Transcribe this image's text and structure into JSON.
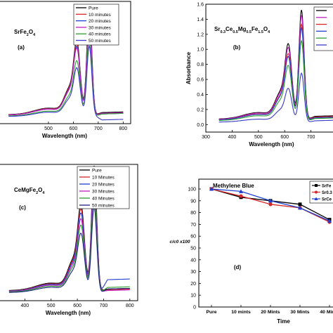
{
  "chart_data": [
    {
      "type": "line",
      "panel_label": "(a)",
      "compound": "SrFe2O4",
      "xlabel": "Wavelength (nm)",
      "ylabel": "",
      "xlim": [
        300,
        830
      ],
      "ylim": [
        -0.05,
        1.6
      ],
      "xticks": [
        "500",
        "600",
        "700",
        "800"
      ],
      "yticks": [],
      "legend_position": "top-right",
      "legend_entries": [
        "Pure",
        "10 minutes",
        "20 minutes",
        "30 minutes",
        "40 minutes",
        "50 minutes"
      ],
      "series": [
        {
          "name": "Pure",
          "color": "#000000",
          "peak": 1.45,
          "tail": 0.1
        },
        {
          "name": "10 minutes",
          "color": "#d62728",
          "peak": 1.4,
          "tail": 0.09
        },
        {
          "name": "20 minutes",
          "color": "#1f3fd1",
          "peak": 1.34,
          "tail": 0.08
        },
        {
          "name": "30 minutes",
          "color": "#c020c0",
          "peak": 1.31,
          "tail": 0.09
        },
        {
          "name": "40 minutes",
          "color": "#2e9e2e",
          "peak": 1.08,
          "tail": 0.08
        },
        {
          "name": "50 minutes",
          "color": "#3a3ac8",
          "peak": 0.95,
          "tail": 0.0
        }
      ]
    },
    {
      "type": "line",
      "panel_label": "(b)",
      "compound": "Sr0.3Ce0.5Mg0.5Fe1.5O4",
      "xlabel": "Wavelength (nm)",
      "ylabel": "Absorbance",
      "xlim": [
        300,
        800
      ],
      "ylim": [
        -0.1,
        1.6
      ],
      "xticks": [
        "300",
        "400",
        "500",
        "600",
        "700",
        "800"
      ],
      "yticks": [
        "0.0",
        "0.2",
        "0.4",
        "0.6",
        "0.8",
        "1.0",
        "1.2",
        "1.4",
        "1.6"
      ],
      "legend_position": "top-right",
      "series": [
        {
          "name": "",
          "color": "#000000",
          "peak": 1.45,
          "tail": 0.11
        },
        {
          "name": "",
          "color": "#c020c0",
          "peak": 1.38,
          "tail": 0.1
        },
        {
          "name": "",
          "color": "#d62728",
          "peak": 1.27,
          "tail": 0.1
        },
        {
          "name": "",
          "color": "#1f3fd1",
          "peak": 1.22,
          "tail": 0.09
        },
        {
          "name": "",
          "color": "#2e9e2e",
          "peak": 1.06,
          "tail": 0.08
        },
        {
          "name": "",
          "color": "#3a3ac8",
          "peak": 0.65,
          "tail": 0.05
        }
      ]
    },
    {
      "type": "line",
      "panel_label": "(c)",
      "compound": "CeMgFe2O4",
      "xlabel": "Wavelength (nm)",
      "ylabel": "",
      "xlim": [
        300,
        830
      ],
      "ylim": [
        -0.05,
        1.7
      ],
      "xticks": [
        "400",
        "500",
        "600",
        "700",
        "800"
      ],
      "yticks": [],
      "legend_position": "top-right",
      "legend_entries": [
        "Pure",
        "10 Minutes",
        "20 Minutes",
        "30 Minutes",
        "40 Minutes",
        "50 minutes"
      ],
      "series": [
        {
          "name": "Pure",
          "color": "#000000",
          "peak": 1.6,
          "tail": 0.1
        },
        {
          "name": "10 Minutes",
          "color": "#d62728",
          "peak": 1.52,
          "tail": 0.09
        },
        {
          "name": "20 Minutes",
          "color": "#1f3fd1",
          "peak": 1.45,
          "tail": 0.22
        },
        {
          "name": "30 Minutes",
          "color": "#c020c0",
          "peak": 1.35,
          "tail": 0.08
        },
        {
          "name": "40 Minutes",
          "color": "#2e9e2e",
          "peak": 1.24,
          "tail": 0.12
        },
        {
          "name": "50 minutes",
          "color": "#1a237e",
          "peak": 1.1,
          "tail": 0.1
        }
      ]
    },
    {
      "type": "line",
      "panel_label": "(d)",
      "title": "Methylene Blue",
      "xlabel": "Time",
      "ylabel": "c/c0 x100",
      "ylim": [
        0,
        100
      ],
      "categories": [
        "Pure",
        "10 mints",
        "20 Mints",
        "30 Mints",
        "40 Mints"
      ],
      "yticks": [
        "0",
        "10",
        "20",
        "30",
        "40",
        "50",
        "60",
        "70",
        "80",
        "90",
        "100"
      ],
      "legend_position": "top-right",
      "legend_entries": [
        "SrFe",
        "Sr0.3",
        "SrCe"
      ],
      "series": [
        {
          "name": "SrFe",
          "color": "#000000",
          "marker": "square",
          "values": [
            100,
            93,
            90,
            87,
            74
          ]
        },
        {
          "name": "Sr0.3",
          "color": "#d62728",
          "marker": "circle",
          "values": [
            100,
            94,
            87,
            84,
            72
          ]
        },
        {
          "name": "SrCe",
          "color": "#1f3fd1",
          "marker": "triangle",
          "values": [
            100,
            98,
            90,
            84,
            73
          ]
        }
      ]
    }
  ]
}
